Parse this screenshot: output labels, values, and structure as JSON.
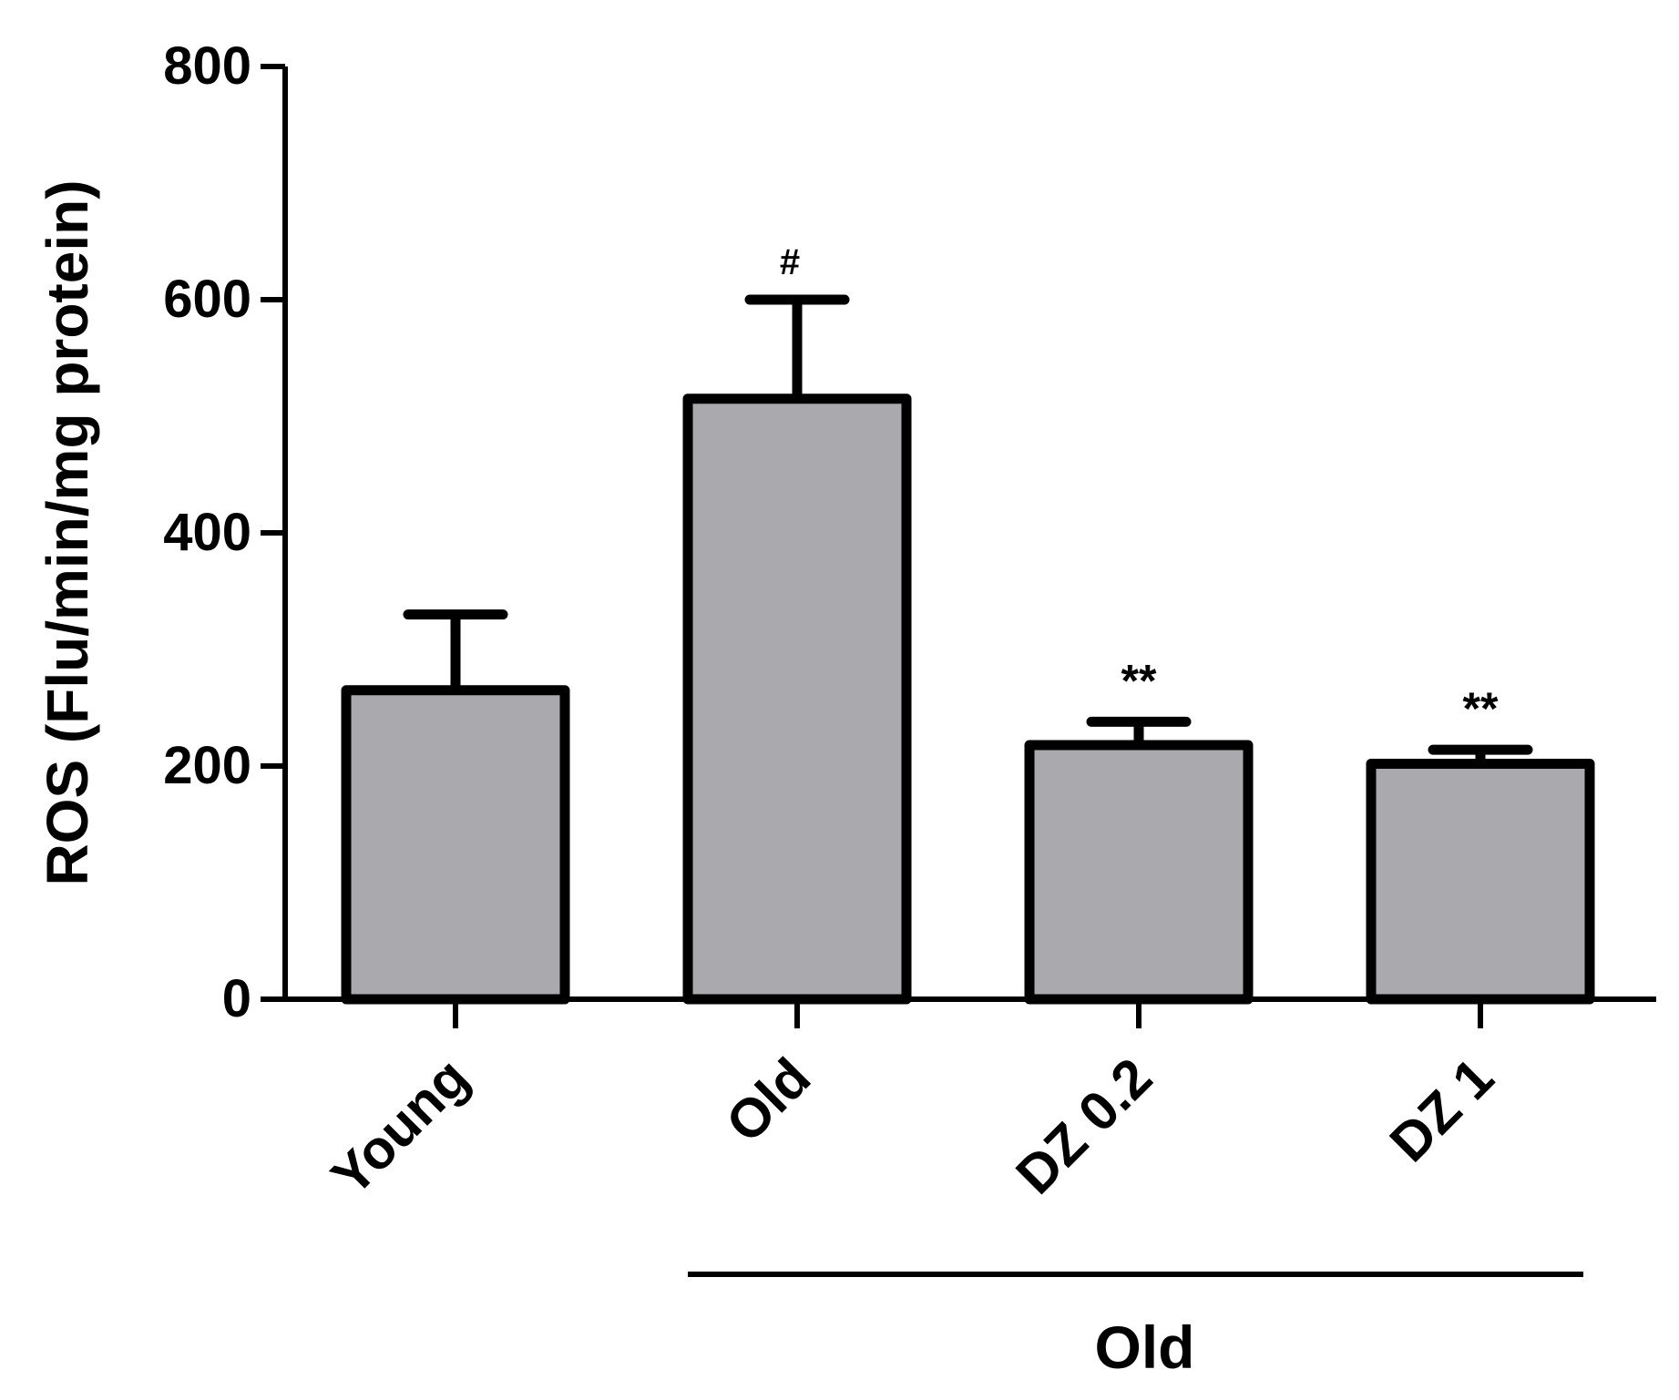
{
  "chart_data": {
    "type": "bar",
    "title": "",
    "xlabel": "",
    "ylabel": "ROS (Flu/min/mg protein)",
    "ylim": [
      0,
      800
    ],
    "yticks": [
      0,
      200,
      400,
      600,
      800
    ],
    "categories": [
      "Young",
      "Old",
      "DZ 0.2",
      "DZ 1"
    ],
    "values": [
      265,
      515,
      218,
      202
    ],
    "errors": [
      65,
      85,
      20,
      12
    ],
    "annotations": [
      "",
      "#",
      "**",
      "**"
    ],
    "group_bracket": {
      "label": "Old",
      "categories": [
        "Old",
        "DZ 0.2",
        "DZ 1"
      ]
    },
    "colors": {
      "bar_fill": "#a9a9ae",
      "bar_stroke": "#000000",
      "axis": "#000000"
    },
    "grid": false,
    "legend": "none"
  }
}
